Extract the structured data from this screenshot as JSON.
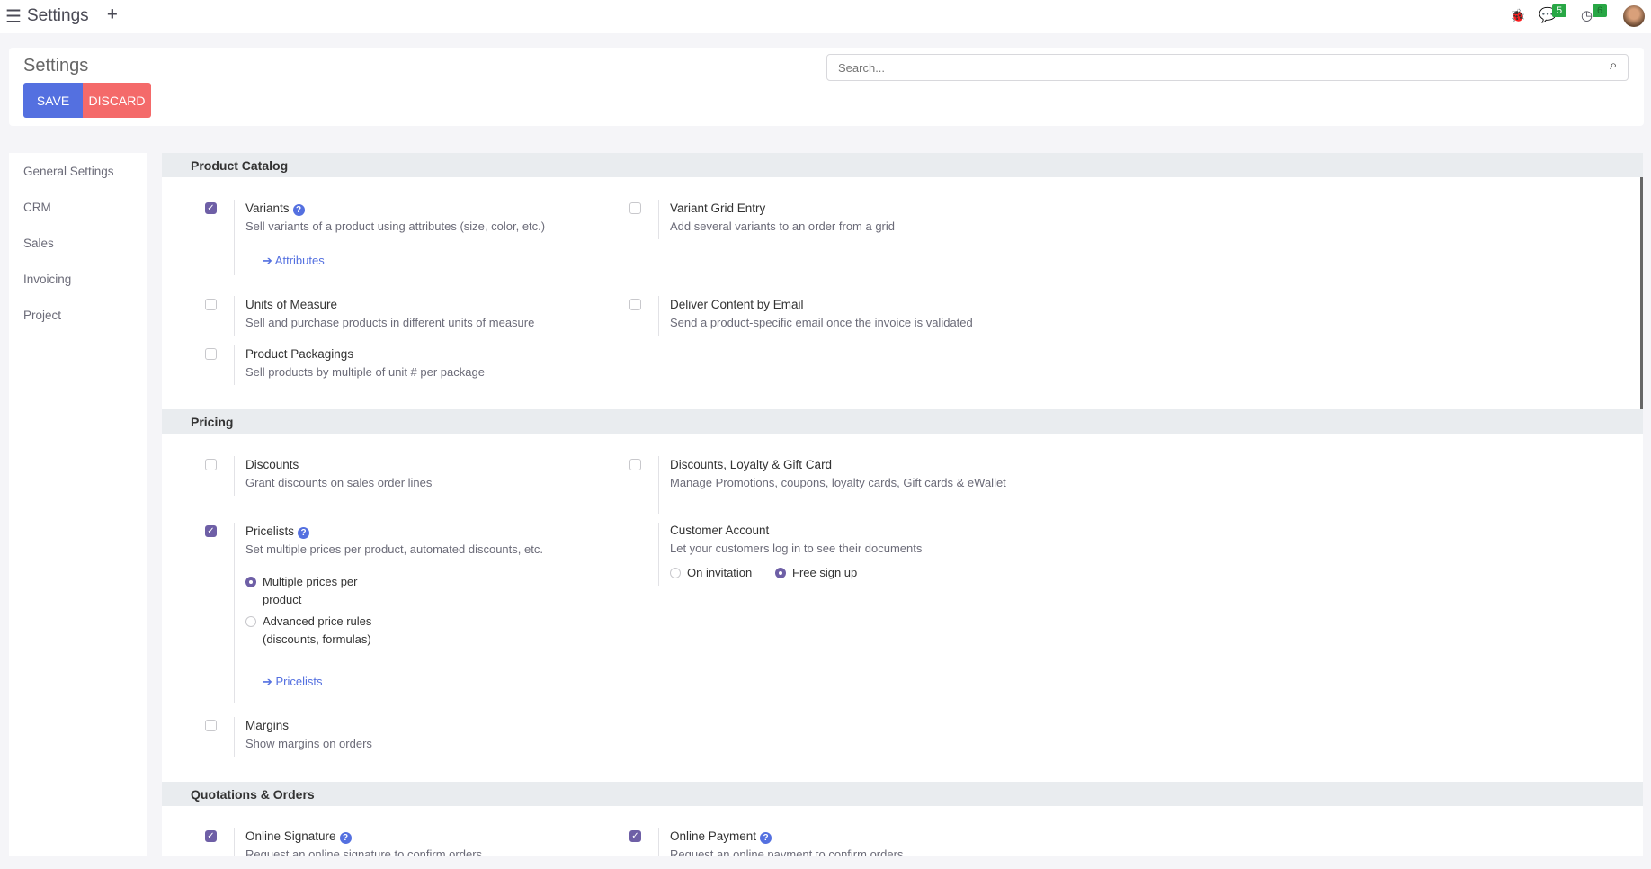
{
  "topbar": {
    "title": "Settings",
    "chat_count": "5",
    "activity_count": "6"
  },
  "control_panel": {
    "title": "Settings",
    "save": "SAVE",
    "discard": "DISCARD",
    "search_placeholder": "Search..."
  },
  "sidebar": {
    "items": [
      {
        "label": "General Settings"
      },
      {
        "label": "CRM"
      },
      {
        "label": "Sales"
      },
      {
        "label": "Invoicing"
      },
      {
        "label": "Project"
      }
    ]
  },
  "sections": {
    "catalog": {
      "title": "Product Catalog",
      "variants": {
        "label": "Variants",
        "desc": "Sell variants of a product using attributes (size, color, etc.)",
        "checked": true,
        "link": "Attributes"
      },
      "grid": {
        "label": "Variant Grid Entry",
        "desc": "Add several variants to an order from a grid",
        "checked": false
      },
      "uom": {
        "label": "Units of Measure",
        "desc": "Sell and purchase products in different units of measure",
        "checked": false
      },
      "email": {
        "label": "Deliver Content by Email",
        "desc": "Send a product-specific email once the invoice is validated",
        "checked": false
      },
      "pack": {
        "label": "Product Packagings",
        "desc": "Sell products by multiple of unit # per package",
        "checked": false
      }
    },
    "pricing": {
      "title": "Pricing",
      "discounts": {
        "label": "Discounts",
        "desc": "Grant discounts on sales order lines",
        "checked": false
      },
      "loyalty": {
        "label": "Discounts, Loyalty & Gift Card",
        "desc": "Manage Promotions, coupons, loyalty cards, Gift cards & eWallet",
        "checked": false
      },
      "pricelists": {
        "label": "Pricelists",
        "desc": "Set multiple prices per product, automated discounts, etc.",
        "checked": true,
        "opt1": "Multiple prices per product",
        "opt2": "Advanced price rules (discounts, formulas)",
        "selected": "Multiple prices per product",
        "link": "Pricelists"
      },
      "account": {
        "label": "Customer Account",
        "desc": "Let your customers log in to see their documents",
        "opt1": "On invitation",
        "opt2": "Free sign up",
        "selected": "Free sign up"
      },
      "margins": {
        "label": "Margins",
        "desc": "Show margins on orders",
        "checked": false
      }
    },
    "quotations": {
      "title": "Quotations & Orders",
      "signature": {
        "label": "Online Signature",
        "desc": "Request an online signature to confirm orders",
        "checked": true
      },
      "payment": {
        "label": "Online Payment",
        "desc": "Request an online payment to confirm orders",
        "checked": true
      }
    }
  },
  "colors": {
    "save": "#5470e0",
    "discard": "#f46a6a",
    "checkbox": "#6e5fa6",
    "link": "#5470e0",
    "badge": "#28a745"
  }
}
